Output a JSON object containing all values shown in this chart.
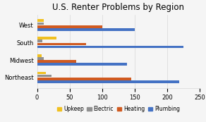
{
  "title": "U.S. Renter Problems by Region",
  "regions": [
    "Northeast",
    "Midwest",
    "South",
    "West"
  ],
  "categories": [
    "Upkeep",
    "Electric",
    "Heating",
    "Plumbing"
  ],
  "colors": [
    "#f0c020",
    "#909090",
    "#d05a20",
    "#4472c4"
  ],
  "values": {
    "West": [
      10,
      10,
      100,
      150
    ],
    "South": [
      30,
      8,
      75,
      225
    ],
    "Midwest": [
      7,
      10,
      60,
      138
    ],
    "Northeast": [
      13,
      22,
      145,
      218
    ]
  },
  "xlim": [
    0,
    250
  ],
  "xticks": [
    0,
    50,
    100,
    150,
    200,
    250
  ],
  "background_color": "#f5f5f5",
  "grid_color": "#d8d8d8",
  "title_fontsize": 8.5,
  "tick_fontsize": 6,
  "legend_fontsize": 5.5
}
